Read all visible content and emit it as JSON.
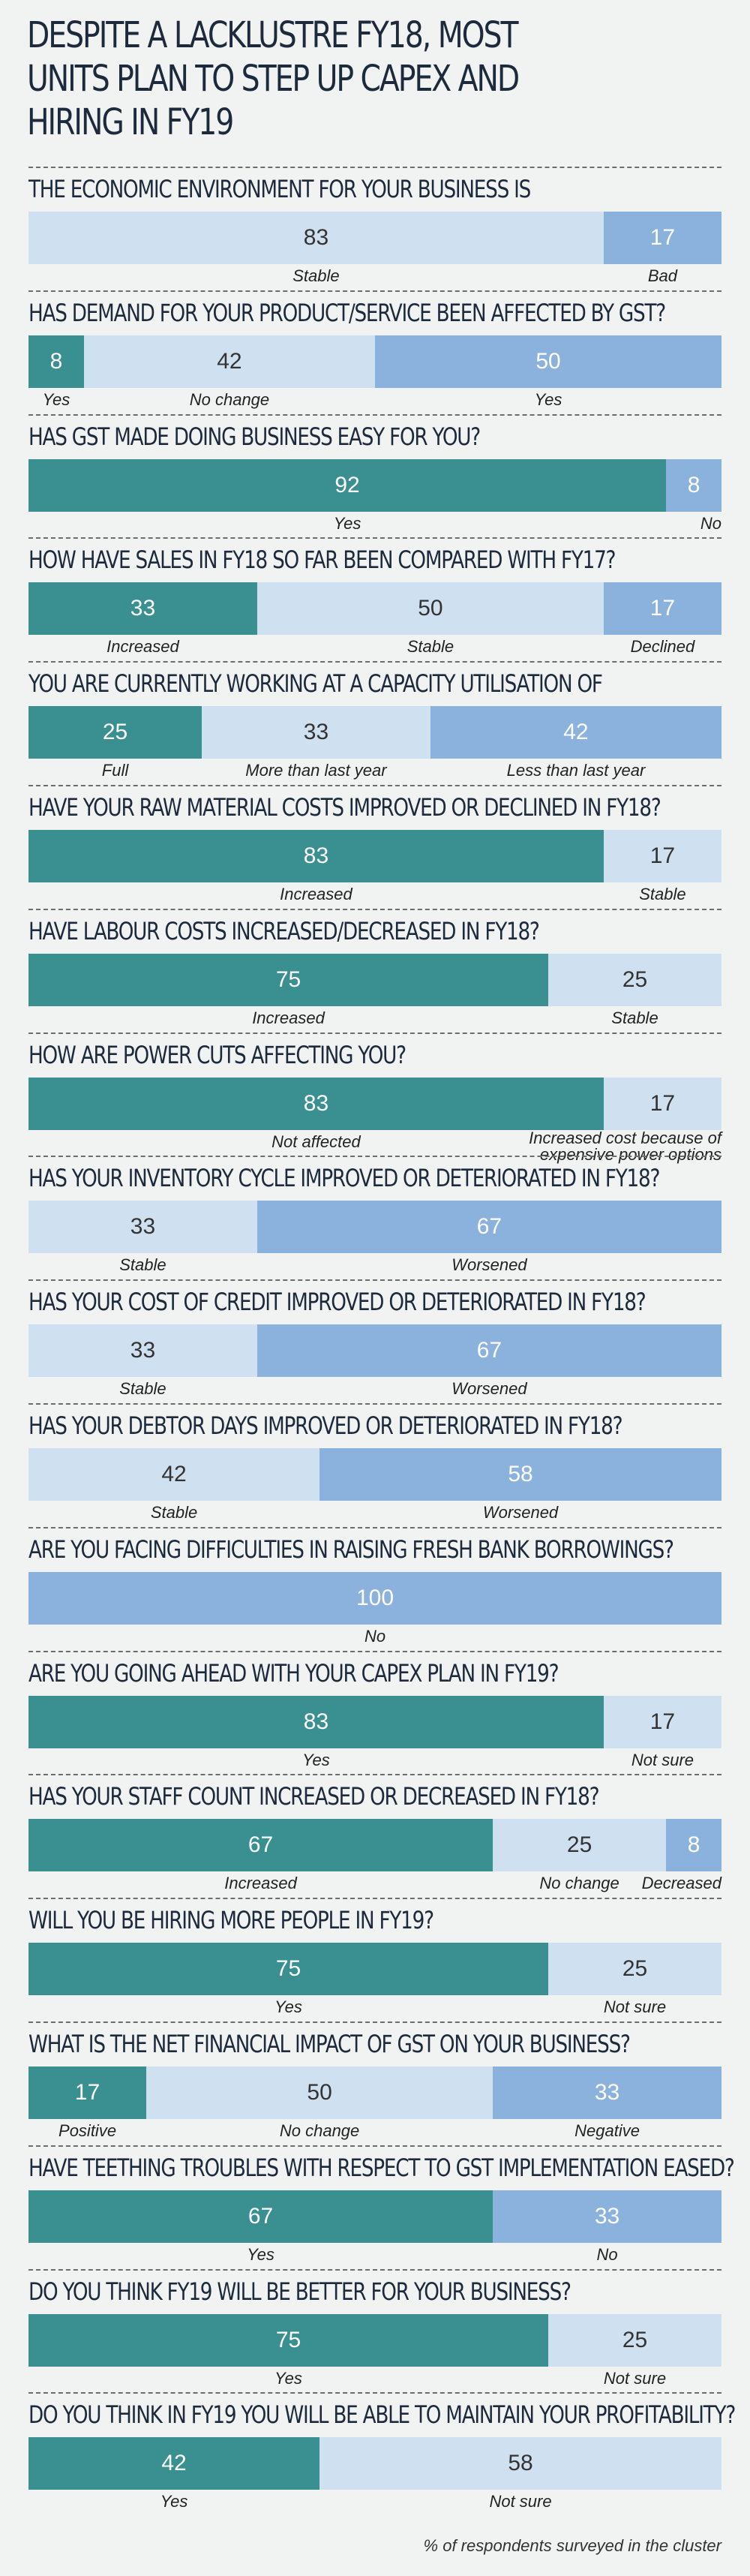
{
  "title": "DESPITE A LACKLUSTRE FY18, MOST UNITS PLAN TO STEP UP CAPEX AND HIRING IN FY19",
  "footnote": "% of respondents surveyed in the cluster",
  "colors": {
    "dark": "#3a8f91",
    "light": "#cfe0f0",
    "mid": "#8bb2dc",
    "background": "#f1f2f2"
  },
  "chart_data": {
    "type": "bar",
    "stacked": true,
    "orientation": "horizontal",
    "unit": "% of respondents surveyed in the cluster",
    "questions": [
      {
        "question": "THE ECONOMIC ENVIRONMENT FOR YOUR BUSINESS IS",
        "segments": [
          {
            "label": "Stable",
            "value": 83,
            "color": "light"
          },
          {
            "label": "Bad",
            "value": 17,
            "color": "mid"
          }
        ]
      },
      {
        "question": "HAS DEMAND FOR YOUR PRODUCT/SERVICE BEEN AFFECTED BY GST?",
        "segments": [
          {
            "label": "Yes",
            "value": 8,
            "color": "dark"
          },
          {
            "label": "No change",
            "value": 42,
            "color": "light"
          },
          {
            "label": "Yes",
            "value": 50,
            "color": "mid"
          }
        ]
      },
      {
        "question": "HAS GST MADE DOING BUSINESS EASY FOR YOU?",
        "segments": [
          {
            "label": "Yes",
            "value": 92,
            "color": "dark"
          },
          {
            "label": "No",
            "value": 8,
            "color": "mid"
          }
        ]
      },
      {
        "question": "HOW HAVE SALES IN FY18 SO FAR BEEN COMPARED WITH FY17?",
        "segments": [
          {
            "label": "Increased",
            "value": 33,
            "color": "dark"
          },
          {
            "label": "Stable",
            "value": 50,
            "color": "light"
          },
          {
            "label": "Declined",
            "value": 17,
            "color": "mid"
          }
        ]
      },
      {
        "question": "YOU ARE CURRENTLY WORKING AT A CAPACITY UTILISATION OF",
        "segments": [
          {
            "label": "Full",
            "value": 25,
            "color": "dark"
          },
          {
            "label": "More than last year",
            "value": 33,
            "color": "light"
          },
          {
            "label": "Less than last year",
            "value": 42,
            "color": "mid"
          }
        ]
      },
      {
        "question": "HAVE YOUR RAW MATERIAL COSTS IMPROVED OR DECLINED IN FY18?",
        "segments": [
          {
            "label": "Increased",
            "value": 83,
            "color": "dark"
          },
          {
            "label": "Stable",
            "value": 17,
            "color": "light"
          }
        ]
      },
      {
        "question": "HAVE LABOUR COSTS INCREASED/DECREASED IN FY18?",
        "segments": [
          {
            "label": "Increased",
            "value": 75,
            "color": "dark"
          },
          {
            "label": "Stable",
            "value": 25,
            "color": "light"
          }
        ]
      },
      {
        "question": "HOW ARE POWER CUTS AFFECTING YOU?",
        "segments": [
          {
            "label": "Not affected",
            "value": 83,
            "color": "dark"
          },
          {
            "label": "Increased cost because of expensive power options",
            "value": 17,
            "color": "light"
          }
        ]
      },
      {
        "question": "HAS YOUR INVENTORY CYCLE IMPROVED OR DETERIORATED IN FY18?",
        "segments": [
          {
            "label": "Stable",
            "value": 33,
            "color": "light"
          },
          {
            "label": "Worsened",
            "value": 67,
            "color": "mid"
          }
        ]
      },
      {
        "question": "HAS YOUR COST OF CREDIT IMPROVED OR DETERIORATED IN FY18?",
        "segments": [
          {
            "label": "Stable",
            "value": 33,
            "color": "light"
          },
          {
            "label": "Worsened",
            "value": 67,
            "color": "mid"
          }
        ]
      },
      {
        "question": "HAS YOUR DEBTOR DAYS IMPROVED OR DETERIORATED IN FY18?",
        "segments": [
          {
            "label": "Stable",
            "value": 42,
            "color": "light"
          },
          {
            "label": "Worsened",
            "value": 58,
            "color": "mid"
          }
        ]
      },
      {
        "question": "ARE YOU FACING DIFFICULTIES IN RAISING FRESH BANK BORROWINGS?",
        "segments": [
          {
            "label": "No",
            "value": 100,
            "color": "mid"
          }
        ]
      },
      {
        "question": "ARE YOU GOING AHEAD WITH YOUR CAPEX PLAN IN FY19?",
        "segments": [
          {
            "label": "Yes",
            "value": 83,
            "color": "dark"
          },
          {
            "label": "Not sure",
            "value": 17,
            "color": "light"
          }
        ]
      },
      {
        "question": "HAS YOUR STAFF COUNT INCREASED OR DECREASED IN FY18?",
        "segments": [
          {
            "label": "Increased",
            "value": 67,
            "color": "dark"
          },
          {
            "label": "No change",
            "value": 25,
            "color": "light"
          },
          {
            "label": "Decreased",
            "value": 8,
            "color": "mid"
          }
        ]
      },
      {
        "question": "WILL YOU BE HIRING MORE PEOPLE IN FY19?",
        "segments": [
          {
            "label": "Yes",
            "value": 75,
            "color": "dark"
          },
          {
            "label": "Not sure",
            "value": 25,
            "color": "light"
          }
        ]
      },
      {
        "question": "WHAT IS THE NET FINANCIAL IMPACT OF GST ON YOUR BUSINESS?",
        "segments": [
          {
            "label": "Positive",
            "value": 17,
            "color": "dark"
          },
          {
            "label": "No change",
            "value": 50,
            "color": "light"
          },
          {
            "label": "Negative",
            "value": 33,
            "color": "mid"
          }
        ]
      },
      {
        "question": "HAVE TEETHING TROUBLES WITH RESPECT TO GST IMPLEMENTATION EASED?",
        "segments": [
          {
            "label": "Yes",
            "value": 67,
            "color": "dark"
          },
          {
            "label": "No",
            "value": 33,
            "color": "mid"
          }
        ]
      },
      {
        "question": "DO YOU THINK FY19 WILL BE BETTER FOR YOUR BUSINESS?",
        "segments": [
          {
            "label": "Yes",
            "value": 75,
            "color": "dark"
          },
          {
            "label": "Not sure",
            "value": 25,
            "color": "light"
          }
        ]
      },
      {
        "question": "DO YOU THINK IN FY19 YOU WILL BE ABLE TO MAINTAIN YOUR PROFITABILITY?",
        "segments": [
          {
            "label": "Yes",
            "value": 42,
            "color": "dark"
          },
          {
            "label": "Not sure",
            "value": 58,
            "color": "light"
          }
        ]
      }
    ]
  }
}
